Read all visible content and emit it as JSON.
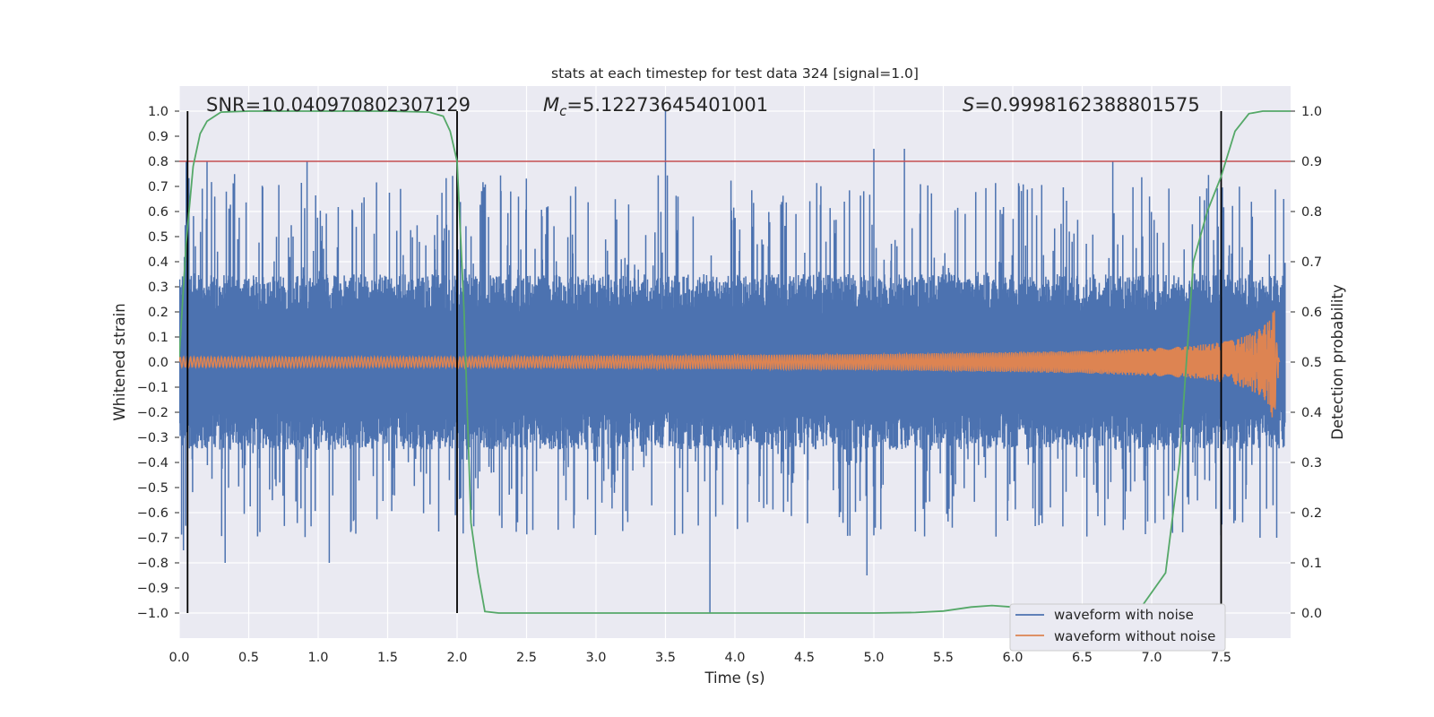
{
  "chart_data": {
    "type": "line",
    "title": "stats at each timestep for test data 324 [signal=1.0]",
    "xlabel": "Time (s)",
    "ylabel": "Whitened strain",
    "ylabel_right": "Detection probability",
    "xlim": [
      0.0,
      8.0
    ],
    "ylim": [
      -1.1,
      1.1
    ],
    "ylim_right": [
      -0.05,
      1.05
    ],
    "x_ticks": [
      "0.0",
      "0.5",
      "1.0",
      "1.5",
      "2.0",
      "2.5",
      "3.0",
      "3.5",
      "4.0",
      "4.5",
      "5.0",
      "5.5",
      "6.0",
      "6.5",
      "7.0",
      "7.5"
    ],
    "y_ticks": [
      "1.0",
      "0.9",
      "0.8",
      "0.7",
      "0.6",
      "0.5",
      "0.4",
      "0.3",
      "0.2",
      "0.1",
      "0.0",
      "−0.1",
      "−0.2",
      "−0.3",
      "−0.4",
      "−0.5",
      "−0.6",
      "−0.7",
      "−0.8",
      "−0.9",
      "−1.0"
    ],
    "y_right_ticks": [
      "1.0",
      "0.9",
      "0.8",
      "0.7",
      "0.6",
      "0.5",
      "0.4",
      "0.3",
      "0.2",
      "0.1",
      "0.0"
    ],
    "annotations": [
      {
        "text": "SNR=10.040970802307129"
      },
      {
        "text": "M",
        "sub": "c",
        "rest": "=5.12273645401001"
      },
      {
        "text": "S",
        "rest": "=0.9998162388801575"
      }
    ],
    "threshold": {
      "value": 0.9,
      "axis": "right",
      "color": "#c44e52"
    },
    "vertical_lines": [
      0.06,
      2.0,
      7.5
    ],
    "grid": true,
    "legend_position": "bottom-right",
    "series": [
      {
        "name": "waveform with noise",
        "color": "#4c72b0",
        "envelope": {
          "x": [
            0.0,
            8.0
          ],
          "typical_amplitude": 0.35
        },
        "peaks": [
          {
            "x": 0.05,
            "y": 0.8
          },
          {
            "x": 0.03,
            "y": -0.75
          },
          {
            "x": 0.2,
            "y": 0.8
          },
          {
            "x": 0.33,
            "y": -0.8
          },
          {
            "x": 0.92,
            "y": 0.8
          },
          {
            "x": 1.08,
            "y": -0.8
          },
          {
            "x": 3.5,
            "y": 1.0
          },
          {
            "x": 3.82,
            "y": -1.0
          },
          {
            "x": 5.0,
            "y": 0.85
          },
          {
            "x": 5.22,
            "y": 0.85
          },
          {
            "x": 4.95,
            "y": -0.85
          },
          {
            "x": 6.72,
            "y": 0.8
          },
          {
            "x": 7.95,
            "y": 0.65
          },
          {
            "x": 7.9,
            "y": -0.7
          },
          {
            "x": 7.78,
            "y": -0.7
          }
        ]
      },
      {
        "name": "waveform without noise",
        "color": "#dd8452",
        "envelope": {
          "x": [
            0.0,
            1.0,
            2.0,
            3.0,
            4.0,
            5.0,
            6.0,
            6.5,
            7.0,
            7.3,
            7.5,
            7.6,
            7.7,
            7.8,
            7.85,
            7.88,
            7.92
          ],
          "amplitude": [
            0.02,
            0.02,
            0.02,
            0.025,
            0.028,
            0.032,
            0.04,
            0.045,
            0.055,
            0.065,
            0.08,
            0.09,
            0.11,
            0.14,
            0.18,
            0.25,
            0.0
          ]
        }
      },
      {
        "name": "Detection probability",
        "color": "#55a868",
        "axis": "right",
        "x": [
          0.0,
          0.05,
          0.1,
          0.15,
          0.2,
          0.3,
          0.5,
          1.0,
          1.5,
          1.8,
          1.9,
          1.95,
          2.0,
          2.05,
          2.1,
          2.15,
          2.2,
          2.3,
          3.0,
          4.0,
          5.0,
          5.3,
          5.5,
          5.7,
          5.85,
          6.0,
          6.2,
          6.6,
          6.9,
          7.1,
          7.2,
          7.3,
          7.4,
          7.5,
          7.6,
          7.7,
          7.8,
          8.0
        ],
        "y": [
          0.51,
          0.74,
          0.89,
          0.955,
          0.98,
          0.998,
          1.0,
          1.0,
          1.0,
          0.998,
          0.99,
          0.96,
          0.9,
          0.6,
          0.18,
          0.08,
          0.003,
          0.0,
          0.0,
          0.0,
          0.0,
          0.001,
          0.004,
          0.012,
          0.015,
          0.012,
          0.004,
          0.001,
          0.002,
          0.08,
          0.3,
          0.7,
          0.8,
          0.87,
          0.96,
          0.995,
          1.0,
          1.0
        ]
      }
    ],
    "legend": [
      "waveform with noise",
      "waveform without noise"
    ]
  }
}
